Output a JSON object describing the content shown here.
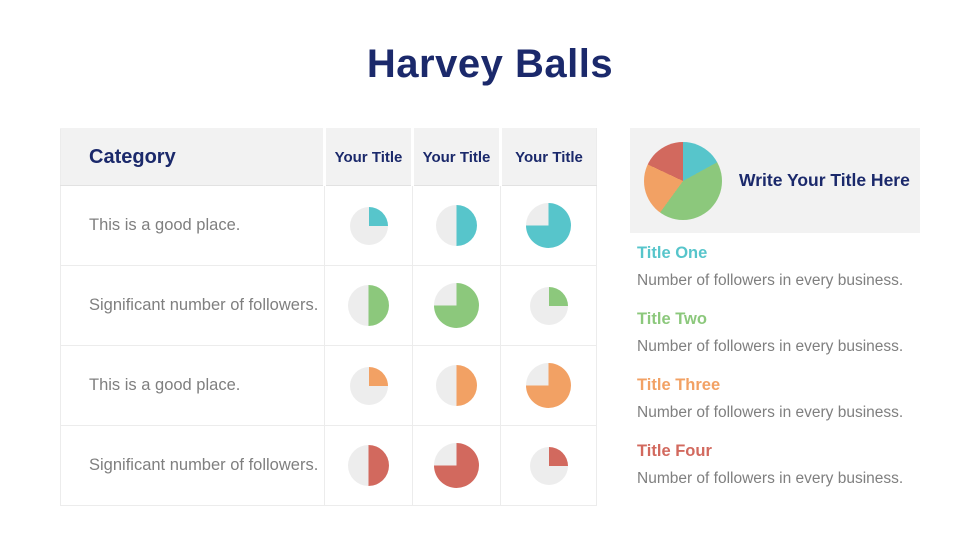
{
  "title": "Harvey Balls",
  "colors": {
    "navy": "#1b296b",
    "teal": "#57c5cb",
    "green": "#8cc87c",
    "orange": "#f2a164",
    "red": "#d2695e",
    "text_gray": "#7f7f7f",
    "panel_bg": "#f2f2f2",
    "ball_empty": "#ededed"
  },
  "chart_data": [
    {
      "type": "table",
      "name": "harvey-ball-matrix",
      "title": "Harvey Balls",
      "columns": [
        "Category",
        "Your Title",
        "Your Title",
        "Your Title"
      ],
      "rows": [
        {
          "category": "This is a good place.",
          "color_name": "teal",
          "color": "#57c5cb",
          "values_percent": [
            25,
            50,
            75
          ]
        },
        {
          "category": "Significant number of followers.",
          "color_name": "green",
          "color": "#8cc87c",
          "values_percent": [
            50,
            75,
            25
          ]
        },
        {
          "category": "This is a good place.",
          "color_name": "orange",
          "color": "#f2a164",
          "values_percent": [
            25,
            50,
            75
          ]
        },
        {
          "category": "Significant number of followers.",
          "color_name": "red",
          "color": "#d2695e",
          "values_percent": [
            50,
            75,
            25
          ]
        }
      ]
    },
    {
      "type": "pie",
      "name": "summary-pie",
      "title": "Write Your Title Here",
      "labels": [
        "Title One",
        "Title Two",
        "Title Three",
        "Title Four"
      ],
      "values_percent": [
        17,
        43,
        22,
        18
      ],
      "colors": [
        "#57c5cb",
        "#8cc87c",
        "#f2a164",
        "#d2695e"
      ],
      "legend_position": "below"
    }
  ],
  "summary_panel": {
    "title": "Write Your Title Here"
  },
  "legend": [
    {
      "title": "Title One",
      "color": "#57c5cb",
      "description": "Number of followers in every business."
    },
    {
      "title": "Title Two",
      "color": "#8cc87c",
      "description": "Number of followers in every business."
    },
    {
      "title": "Title Three",
      "color": "#f2a164",
      "description": "Number of followers in every business."
    },
    {
      "title": "Title Four",
      "color": "#d2695e",
      "description": "Number of followers in every business."
    }
  ]
}
